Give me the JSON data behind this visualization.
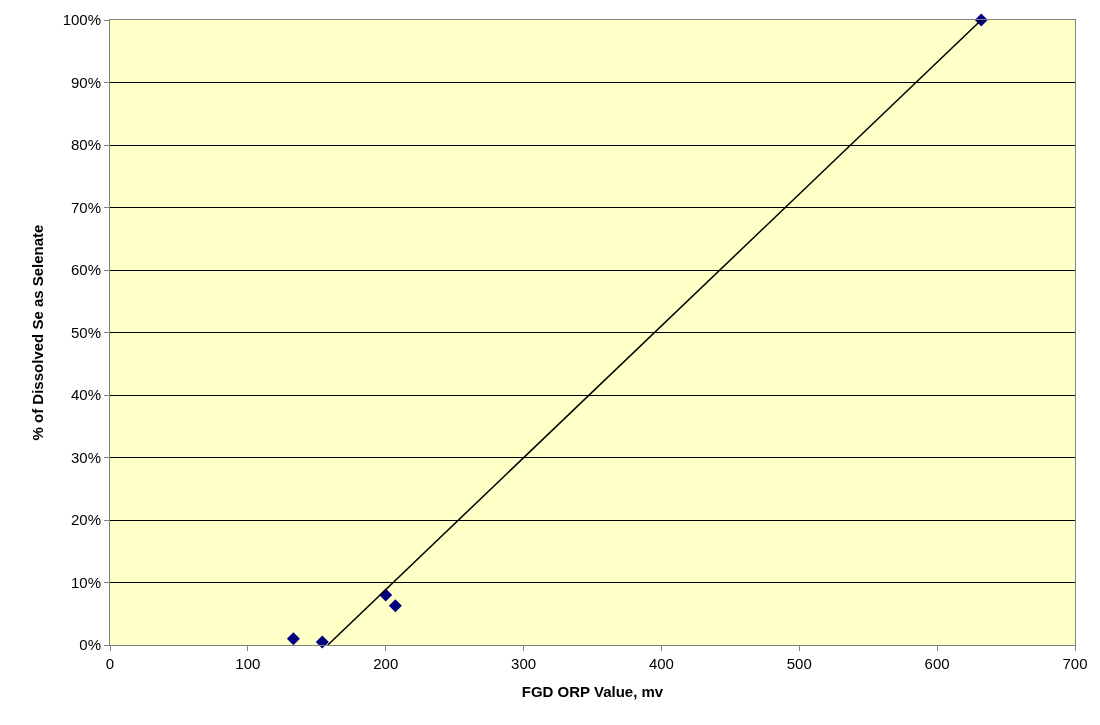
{
  "chart_data": {
    "type": "scatter",
    "xlabel": "FGD ORP Value, mv",
    "ylabel": "% of Dissolved Se as Selenate",
    "xlim": [
      0,
      700
    ],
    "xticks": [
      0,
      100,
      200,
      300,
      400,
      500,
      600,
      700
    ],
    "ylim": [
      0,
      100
    ],
    "yticks": [
      {
        "value": 0,
        "label": "0%"
      },
      {
        "value": 10,
        "label": "10%"
      },
      {
        "value": 20,
        "label": "20%"
      },
      {
        "value": 30,
        "label": "30%"
      },
      {
        "value": 40,
        "label": "40%"
      },
      {
        "value": 50,
        "label": "50%"
      },
      {
        "value": 60,
        "label": "60%"
      },
      {
        "value": 70,
        "label": "70%"
      },
      {
        "value": 80,
        "label": "80%"
      },
      {
        "value": 90,
        "label": "90%"
      },
      {
        "value": 100,
        "label": "100%"
      }
    ],
    "grid": "y",
    "marker": "diamond",
    "series": [
      {
        "color": "#000080",
        "x": [
          133,
          154,
          200,
          207,
          632
        ],
        "values": [
          1,
          0.5,
          8,
          6.3,
          100
        ]
      },
      {
        "type": "line",
        "color": "#000000",
        "marker": "none",
        "x": [
          158,
          632
        ],
        "values": [
          0,
          100
        ]
      }
    ]
  }
}
